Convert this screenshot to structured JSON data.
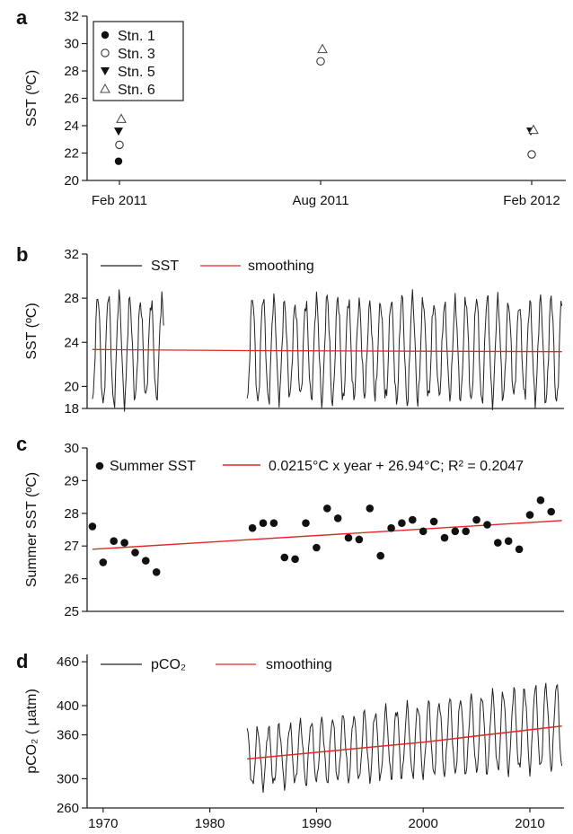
{
  "chart_data": [
    {
      "panel": "a",
      "type": "scatter",
      "ylabel": "SST (ºC)",
      "ylim": [
        20,
        32
      ],
      "yticks": [
        20,
        22,
        24,
        26,
        28,
        30,
        32
      ],
      "xticks": [
        "Feb 2011",
        "Aug 2011",
        "Feb 2012"
      ],
      "legend_placement": "top-left",
      "series": [
        {
          "name": "Stn. 1",
          "marker": "filled-circle",
          "points": [
            {
              "x": "Feb 2011",
              "y": 21.4
            }
          ]
        },
        {
          "name": "Stn. 3",
          "marker": "open-circle",
          "points": [
            {
              "x": "Feb 2011",
              "y": 22.6
            },
            {
              "x": "Aug 2011",
              "y": 28.7
            },
            {
              "x": "Feb 2012",
              "y": 21.9
            }
          ]
        },
        {
          "name": "Stn. 5",
          "marker": "filled-triangle-down",
          "points": [
            {
              "x": "Feb 2011",
              "y": 23.6
            },
            {
              "x": "Feb 2012",
              "y": 23.6
            }
          ]
        },
        {
          "name": "Stn. 6",
          "marker": "open-triangle-up",
          "points": [
            {
              "x": "Feb 2011",
              "y": 24.5
            },
            {
              "x": "Aug 2011",
              "y": 29.6
            },
            {
              "x": "Feb 2012",
              "y": 23.7
            }
          ]
        }
      ]
    },
    {
      "panel": "b",
      "type": "line",
      "ylabel": "SST (ºC)",
      "ylim": [
        18,
        32
      ],
      "yticks": [
        18,
        20,
        24,
        28,
        32
      ],
      "xlim": [
        1968.5,
        2013.2
      ],
      "legend_placement": "top",
      "series": [
        {
          "name": "SST",
          "color": "#222222",
          "kind": "monthly-seasonal",
          "segments": [
            {
              "start": 1969.0,
              "end": 1975.7,
              "mean": 23.3,
              "amplitude": 4.7
            },
            {
              "start": 1983.5,
              "end": 2013.0,
              "mean": 23.3,
              "amplitude": 4.5
            }
          ]
        },
        {
          "name": "smoothing",
          "color": "#e32727",
          "points": [
            {
              "x": 1969.0,
              "y": 23.35
            },
            {
              "x": 1983.5,
              "y": 23.25
            },
            {
              "x": 2013.0,
              "y": 23.15
            }
          ]
        }
      ]
    },
    {
      "panel": "c",
      "type": "scatter",
      "ylabel": "Summer SST (ºC)",
      "ylim": [
        25,
        30
      ],
      "yticks": [
        25,
        26,
        27,
        28,
        29,
        30
      ],
      "xlim": [
        1968.5,
        2013.2
      ],
      "legend_placement": "top",
      "series": [
        {
          "name": "Summer SST",
          "color": "#111111",
          "x": [
            1969,
            1970,
            1971,
            1972,
            1973,
            1974,
            1975,
            1984,
            1985,
            1986,
            1987,
            1988,
            1989,
            1990,
            1991,
            1992,
            1993,
            1994,
            1995,
            1996,
            1997,
            1998,
            1999,
            2000,
            2001,
            2002,
            2003,
            2004,
            2005,
            2006,
            2007,
            2008,
            2009,
            2010,
            2011,
            2012
          ],
          "y": [
            27.6,
            26.5,
            27.15,
            27.1,
            26.8,
            26.55,
            26.2,
            27.55,
            27.7,
            27.7,
            26.65,
            26.6,
            27.7,
            26.95,
            28.15,
            27.85,
            27.25,
            27.2,
            28.15,
            26.7,
            27.55,
            27.7,
            27.8,
            27.45,
            27.75,
            27.25,
            27.45,
            27.45,
            27.8,
            27.65,
            27.1,
            27.15,
            26.9,
            27.95,
            28.4,
            28.05
          ]
        },
        {
          "name": "0.0215°C x year + 26.94°C; R² = 0.2047",
          "color": "#e32727",
          "points": [
            {
              "x": 1969.0,
              "y": 26.9
            },
            {
              "x": 2013.0,
              "y": 27.78
            }
          ]
        }
      ]
    },
    {
      "panel": "d",
      "type": "line",
      "ylabel": "pCO₂ ( µatm)",
      "ylim": [
        260,
        470
      ],
      "yticks": [
        260,
        300,
        360,
        400,
        460
      ],
      "xlim": [
        1968.5,
        2013.2
      ],
      "xticks": [
        1970,
        1980,
        1990,
        2000,
        2010
      ],
      "legend_placement": "top",
      "series": [
        {
          "name": "pCO₂",
          "color": "#222222",
          "kind": "monthly-seasonal",
          "segments": [
            {
              "start": 1983.5,
              "end": 2013.0
            }
          ],
          "trend": [
            {
              "x": 1983.5,
              "y": 327
            },
            {
              "x": 2013.0,
              "y": 373
            }
          ],
          "amplitude_start": 38,
          "amplitude_end": 58
        },
        {
          "name": "smoothing",
          "color": "#e32727",
          "points": [
            {
              "x": 1983.5,
              "y": 327
            },
            {
              "x": 2000.0,
              "y": 350
            },
            {
              "x": 2013.0,
              "y": 372
            }
          ]
        }
      ]
    }
  ],
  "panel_letters": {
    "a": "a",
    "b": "b",
    "c": "c",
    "d": "d"
  }
}
